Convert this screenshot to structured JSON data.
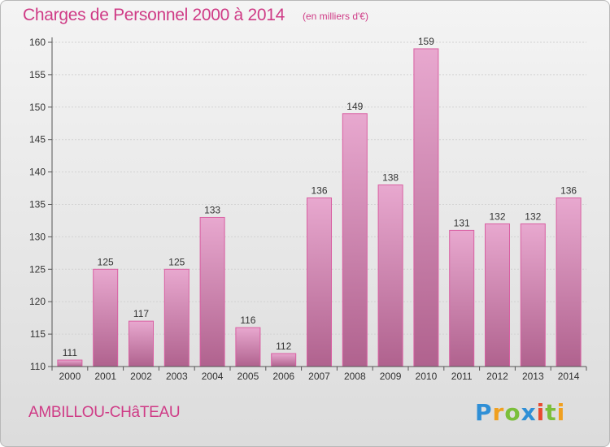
{
  "header": {
    "title": "Charges de Personnel 2000 à 2014",
    "subtitle": "(en milliers d'€)"
  },
  "footer": {
    "place": "AMBILLOU-CHâTEAU",
    "logo_text": "Proxiti"
  },
  "colors": {
    "accent": "#cf3b86",
    "bar_top": "#e8a8cf",
    "bar_bottom": "#b0628e",
    "bar_edge": "#d95fa2"
  },
  "chart_data": {
    "type": "bar",
    "title": "Charges de Personnel 2000 à 2014",
    "subtitle": "(en milliers d'€)",
    "categories": [
      "2000",
      "2001",
      "2002",
      "2003",
      "2004",
      "2005",
      "2006",
      "2007",
      "2008",
      "2009",
      "2010",
      "2011",
      "2012",
      "2013",
      "2014"
    ],
    "values": [
      111,
      125,
      117,
      125,
      133,
      116,
      112,
      136,
      149,
      138,
      159,
      131,
      132,
      132,
      136
    ],
    "ylim": [
      110,
      160
    ],
    "yticks": [
      110,
      115,
      120,
      125,
      130,
      135,
      140,
      145,
      150,
      155,
      160
    ],
    "grid": true
  }
}
